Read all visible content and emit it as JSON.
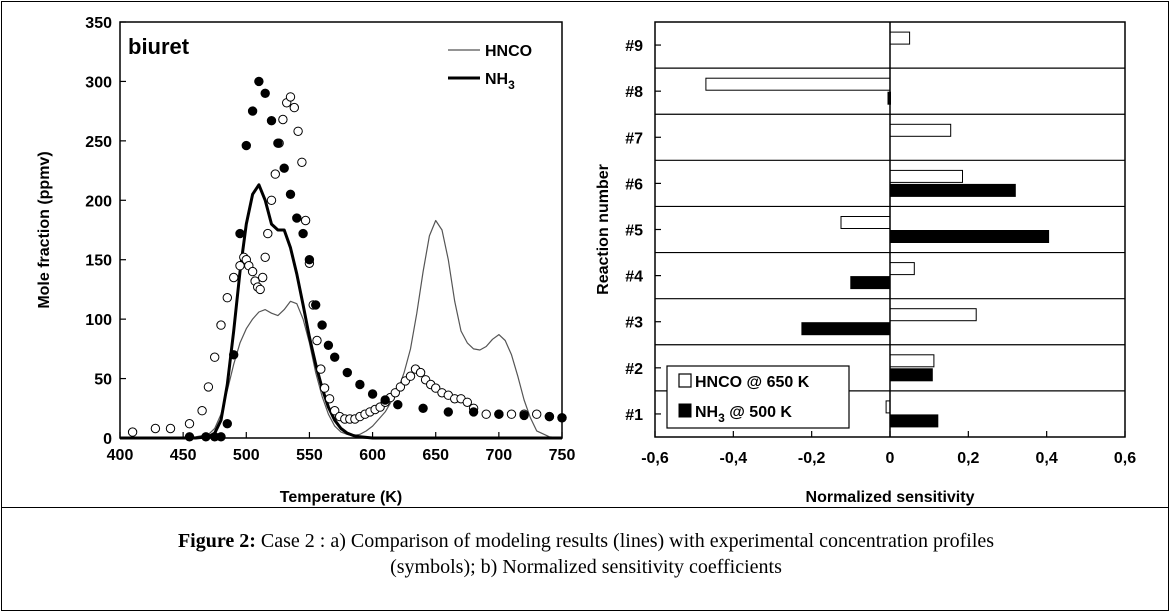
{
  "caption": {
    "label": "Figure 2:",
    "text": "Case 2 : a) Comparison of modeling results (lines) with experimental concentration profiles",
    "text2": "(symbols);  b)  Normalized sensitivity coefficients"
  },
  "chart_data": [
    {
      "type": "line",
      "panel": "a",
      "annotation": "biuret",
      "xlabel": "Temperature (K)",
      "ylabel": "Mole fraction (ppmv)",
      "xlim": [
        400,
        750
      ],
      "ylim": [
        0,
        350
      ],
      "xticks": [
        400,
        450,
        500,
        550,
        600,
        650,
        700,
        750
      ],
      "yticks": [
        0,
        50,
        100,
        150,
        200,
        250,
        300,
        350
      ],
      "legend_position": "top-right",
      "grid": false,
      "series": [
        {
          "name": "HNCO",
          "kind": "model-line",
          "style": "thin",
          "color": "#555555",
          "x": [
            400,
            440,
            460,
            470,
            475,
            480,
            485,
            490,
            495,
            500,
            505,
            510,
            515,
            520,
            525,
            530,
            535,
            540,
            545,
            550,
            555,
            560,
            565,
            570,
            575,
            580,
            585,
            590,
            595,
            600,
            610,
            620,
            625,
            630,
            635,
            640,
            645,
            650,
            655,
            660,
            665,
            670,
            675,
            680,
            685,
            690,
            695,
            700,
            705,
            710,
            715,
            720,
            725,
            730,
            740,
            750
          ],
          "y": [
            0,
            0,
            1,
            3,
            8,
            20,
            40,
            62,
            80,
            92,
            100,
            106,
            108,
            105,
            103,
            108,
            115,
            113,
            100,
            80,
            55,
            35,
            20,
            10,
            5,
            3,
            2,
            3,
            6,
            10,
            22,
            40,
            55,
            75,
            105,
            140,
            170,
            183,
            175,
            150,
            115,
            90,
            80,
            75,
            74,
            77,
            83,
            87,
            82,
            70,
            52,
            32,
            17,
            6,
            1,
            0
          ]
        },
        {
          "name": "NH3",
          "legend_label": "NH",
          "legend_subscript": "3",
          "kind": "model-line",
          "style": "thick",
          "color": "#000000",
          "x": [
            400,
            460,
            470,
            475,
            480,
            485,
            490,
            495,
            500,
            505,
            510,
            515,
            520,
            525,
            530,
            535,
            540,
            545,
            550,
            555,
            560,
            565,
            570,
            575,
            580,
            585,
            590,
            600,
            750
          ],
          "y": [
            0,
            0,
            1,
            4,
            15,
            45,
            90,
            140,
            180,
            205,
            213,
            200,
            180,
            175,
            175,
            160,
            138,
            112,
            85,
            62,
            42,
            26,
            15,
            8,
            4,
            2,
            1,
            0,
            0
          ]
        },
        {
          "name": "HNCO",
          "kind": "experimental",
          "marker": "open-circle",
          "x": [
            410,
            428,
            440,
            455,
            465,
            470,
            475,
            480,
            485,
            490,
            495,
            498,
            500,
            502,
            505,
            507,
            509,
            511,
            513,
            515,
            517,
            520,
            523,
            526,
            529,
            532,
            535,
            538,
            541,
            544,
            547,
            550,
            553,
            556,
            559,
            562,
            566,
            570,
            574,
            578,
            582,
            586,
            590,
            594,
            598,
            602,
            606,
            610,
            614,
            618,
            622,
            626,
            630,
            634,
            638,
            642,
            646,
            650,
            655,
            660,
            665,
            670,
            675,
            680,
            690,
            700,
            710,
            720,
            730,
            740,
            750
          ],
          "y": [
            5,
            8,
            8,
            12,
            23,
            43,
            68,
            95,
            118,
            135,
            145,
            152,
            150,
            145,
            140,
            132,
            127,
            125,
            135,
            152,
            172,
            200,
            222,
            248,
            268,
            282,
            287,
            278,
            258,
            232,
            183,
            147,
            112,
            82,
            58,
            42,
            33,
            23,
            18,
            16,
            16,
            16,
            18,
            20,
            22,
            24,
            26,
            30,
            34,
            38,
            43,
            48,
            52,
            58,
            55,
            49,
            45,
            42,
            38,
            36,
            33,
            33,
            30,
            25,
            20,
            20,
            20,
            20,
            20,
            18,
            17
          ]
        },
        {
          "name": "NH3",
          "kind": "experimental",
          "marker": "filled-circle",
          "x": [
            455,
            468,
            475,
            480,
            485,
            490,
            495,
            500,
            505,
            510,
            515,
            520,
            525,
            530,
            535,
            540,
            545,
            550,
            555,
            560,
            565,
            570,
            580,
            590,
            600,
            610,
            620,
            640,
            660,
            680,
            700,
            720,
            740,
            750
          ],
          "y": [
            1,
            1,
            1,
            1,
            12,
            70,
            172,
            246,
            275,
            300,
            290,
            267,
            248,
            227,
            205,
            185,
            172,
            150,
            112,
            95,
            78,
            68,
            55,
            45,
            37,
            32,
            28,
            25,
            22,
            22,
            20,
            19,
            18,
            17
          ]
        }
      ]
    },
    {
      "type": "bar",
      "orientation": "horizontal",
      "panel": "b",
      "xlabel": "Normalized sensitivity",
      "ylabel": "Reaction number",
      "xlim": [
        -0.6,
        0.6
      ],
      "xticks": [
        "-0,6",
        "-0,4",
        "-0,2",
        "0",
        "0,2",
        "0,4",
        "0,6"
      ],
      "xtick_values": [
        -0.6,
        -0.4,
        -0.2,
        0,
        0.2,
        0.4,
        0.6
      ],
      "categories": [
        "#9",
        "#8",
        "#7",
        "#6",
        "#5",
        "#4",
        "#3",
        "#2",
        "#1"
      ],
      "legend_position": "bottom-left",
      "series": [
        {
          "name": "HNCO @ 650 K",
          "fill": "open",
          "values": [
            0.05,
            -0.47,
            0.155,
            0.185,
            -0.125,
            0.062,
            0.22,
            0.112,
            -0.01
          ]
        },
        {
          "name": "NH3 @ 500 K",
          "legend_parts": [
            "NH",
            "3",
            " @ 500 K"
          ],
          "fill": "filled",
          "values": [
            0,
            -0.005,
            0,
            0.32,
            0.405,
            -0.1,
            -0.225,
            0.108,
            0.122
          ]
        }
      ]
    }
  ]
}
